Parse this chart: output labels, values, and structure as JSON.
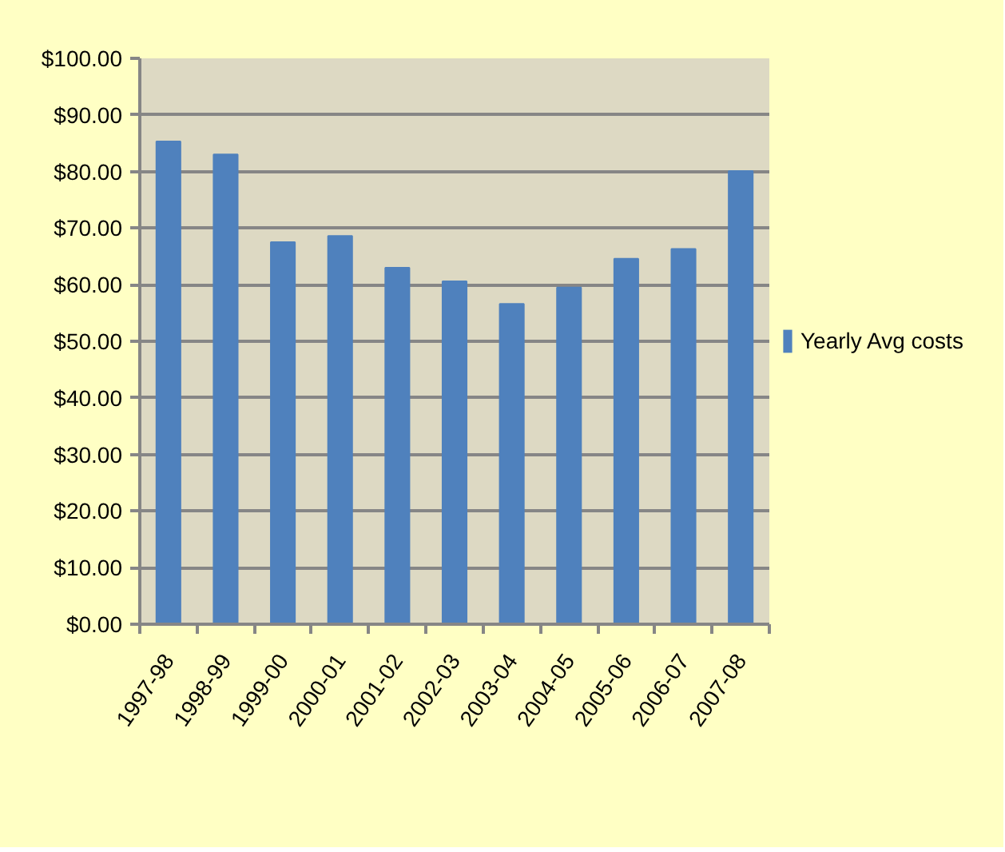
{
  "chart_data": {
    "type": "bar",
    "categories": [
      "1997-98",
      "1998-99",
      "1999-00",
      "2000-01",
      "2001-02",
      "2002-03",
      "2003-04",
      "2004-05",
      "2005-06",
      "2006-07",
      "2007-08"
    ],
    "series": [
      {
        "name": "Yearly Avg costs",
        "color": "#4f81bd",
        "values": [
          85.3,
          83.0,
          67.5,
          68.6,
          63.0,
          60.6,
          56.6,
          59.5,
          64.6,
          66.3,
          80.1
        ]
      }
    ],
    "ylim": [
      0,
      100
    ],
    "yticks": [
      {
        "value": 0,
        "label": "$0.00"
      },
      {
        "value": 10,
        "label": "$10.00"
      },
      {
        "value": 20,
        "label": "$20.00"
      },
      {
        "value": 30,
        "label": "$30.00"
      },
      {
        "value": 40,
        "label": "$40.00"
      },
      {
        "value": 50,
        "label": "$50.00"
      },
      {
        "value": 60,
        "label": "$60.00"
      },
      {
        "value": 70,
        "label": "$70.00"
      },
      {
        "value": 80,
        "label": "$80.00"
      },
      {
        "value": 90,
        "label": "$90.00"
      },
      {
        "value": 100,
        "label": "$100.00"
      }
    ],
    "grid": "y",
    "legend": "right"
  }
}
